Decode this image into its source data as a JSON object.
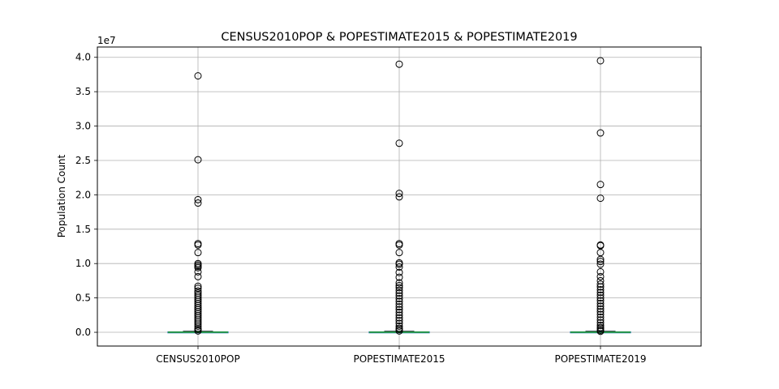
{
  "chart_data": {
    "type": "box",
    "title": "CENSUS2010POP & POPESTIMATE2015 & POPESTIMATE2019",
    "xlabel": "",
    "ylabel": "Population Count",
    "y_offset_label": "1e7",
    "ylim": [
      -0.2,
      4.15
    ],
    "yticks": [
      0.0,
      0.5,
      1.0,
      1.5,
      2.0,
      2.5,
      3.0,
      3.5,
      4.0
    ],
    "ytick_labels": [
      "0.0",
      "0.5",
      "1.0",
      "1.5",
      "2.0",
      "2.5",
      "3.0",
      "3.5",
      "4.0"
    ],
    "grid": true,
    "categories": [
      "CENSUS2010POP",
      "POPESTIMATE2015",
      "POPESTIMATE2019"
    ],
    "boxes": [
      {
        "name": "CENSUS2010POP",
        "q1": 0.0011,
        "median": 0.0026,
        "q3": 0.0067,
        "whisker_low": 0.0,
        "whisker_high": 0.015,
        "outliers": [
          3.73,
          2.51,
          1.93,
          1.88,
          1.29,
          1.27,
          1.16,
          1.0,
          0.98,
          0.96,
          0.94,
          0.88,
          0.81,
          0.67,
          0.64,
          0.6,
          0.57,
          0.54,
          0.51,
          0.48,
          0.45,
          0.42,
          0.39,
          0.36,
          0.33,
          0.3,
          0.27,
          0.24,
          0.21,
          0.18,
          0.15,
          0.12,
          0.09,
          0.06,
          0.04,
          0.02
        ]
      },
      {
        "name": "POPESTIMATE2015",
        "q1": 0.0011,
        "median": 0.0026,
        "q3": 0.0068,
        "whisker_low": 0.0,
        "whisker_high": 0.0152,
        "outliers": [
          3.9,
          2.75,
          2.02,
          1.97,
          1.29,
          1.27,
          1.16,
          1.01,
          0.99,
          0.95,
          0.87,
          0.8,
          0.72,
          0.68,
          0.65,
          0.61,
          0.57,
          0.53,
          0.49,
          0.45,
          0.41,
          0.37,
          0.33,
          0.29,
          0.25,
          0.21,
          0.17,
          0.13,
          0.09,
          0.06,
          0.04,
          0.02
        ]
      },
      {
        "name": "POPESTIMATE2019",
        "q1": 0.0011,
        "median": 0.0026,
        "q3": 0.007,
        "whisker_low": 0.0,
        "whisker_high": 0.0158,
        "outliers": [
          3.95,
          2.9,
          2.15,
          1.95,
          1.27,
          1.26,
          1.16,
          1.06,
          1.03,
          0.99,
          0.88,
          0.81,
          0.75,
          0.7,
          0.66,
          0.62,
          0.58,
          0.54,
          0.5,
          0.46,
          0.42,
          0.38,
          0.34,
          0.3,
          0.26,
          0.22,
          0.18,
          0.14,
          0.1,
          0.07,
          0.05,
          0.03,
          0.015
        ]
      }
    ],
    "colors": {
      "box": "#1f77b4",
      "median": "#2ca02c",
      "grid": "#b0b0b0",
      "outlier": "#000000"
    }
  }
}
